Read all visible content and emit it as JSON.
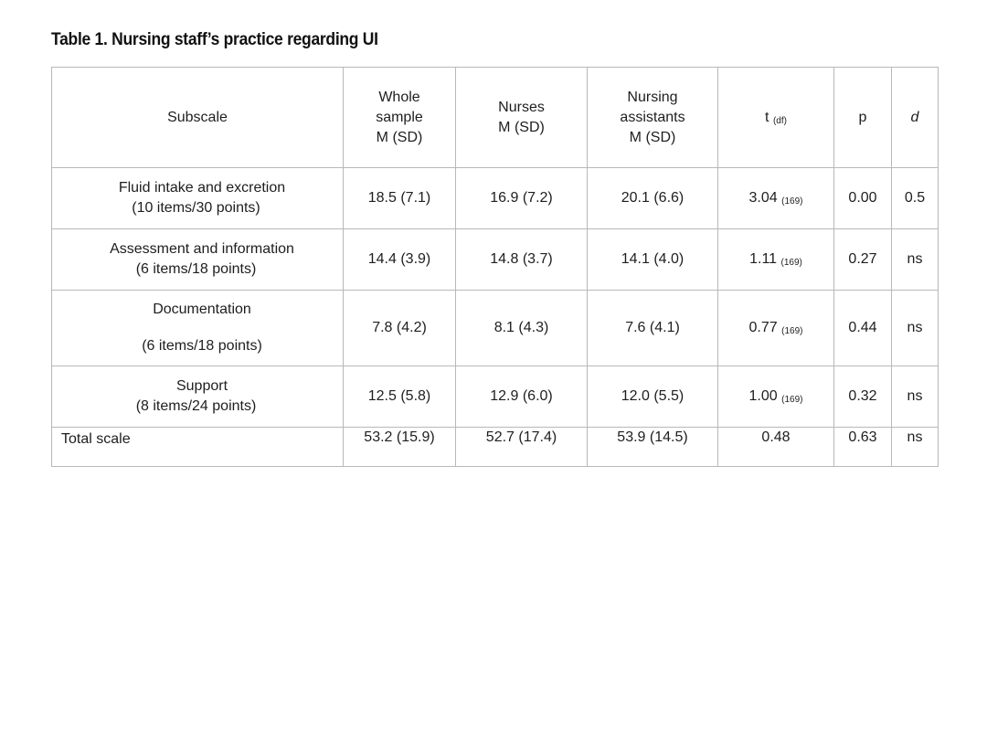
{
  "caption": "Table 1. Nursing staff’s practice regarding UI",
  "header": {
    "subscale": "Subscale",
    "whole_sample_line1": "Whole",
    "whole_sample_line2": "sample",
    "whole_sample_line3": "M (SD)",
    "nurses_line1": "Nurses",
    "nurses_line2": "M (SD)",
    "assistants_line1": "Nursing",
    "assistants_line2": "assistants",
    "assistants_line3": "M (SD)",
    "t_main": "t",
    "t_sub": "(df)",
    "p": "p",
    "d": "d"
  },
  "rows": [
    {
      "label_line1": "Fluid intake and excretion",
      "label_line2": "(10 items/30 points)",
      "whole": "18.5 (7.1)",
      "nurses": "16.9 (7.2)",
      "assistants": "20.1 (6.6)",
      "t": "3.04",
      "df": "(169)",
      "p": "0.00",
      "d": "0.5"
    },
    {
      "label_line1": "Assessment and information",
      "label_line2": "(6 items/18 points)",
      "whole": "14.4 (3.9)",
      "nurses": "14.8 (3.7)",
      "assistants": "14.1 (4.0)",
      "t": "1.11",
      "df": "(169)",
      "p": "0.27",
      "d": "ns"
    },
    {
      "label_line1": "Documentation",
      "label_line2": "(6 items/18 points)",
      "whole": "7.8 (4.2)",
      "nurses": "8.1 (4.3)",
      "assistants": "7.6 (4.1)",
      "t": "0.77",
      "df": "(169)",
      "p": "0.44",
      "d": "ns"
    },
    {
      "label_line1": "Support",
      "label_line2": "(8 items/24 points)",
      "whole": "12.5 (5.8)",
      "nurses": "12.9 (6.0)",
      "assistants": "12.0 (5.5)",
      "t": "1.00",
      "df": "(169)",
      "p": "0.32",
      "d": "ns"
    },
    {
      "label_line1": "Total scale",
      "whole": "53.2 (15.9)",
      "nurses": "52.7 (17.4)",
      "assistants": "53.9 (14.5)",
      "t": "0.48",
      "p": "0.63",
      "d": "ns"
    }
  ]
}
